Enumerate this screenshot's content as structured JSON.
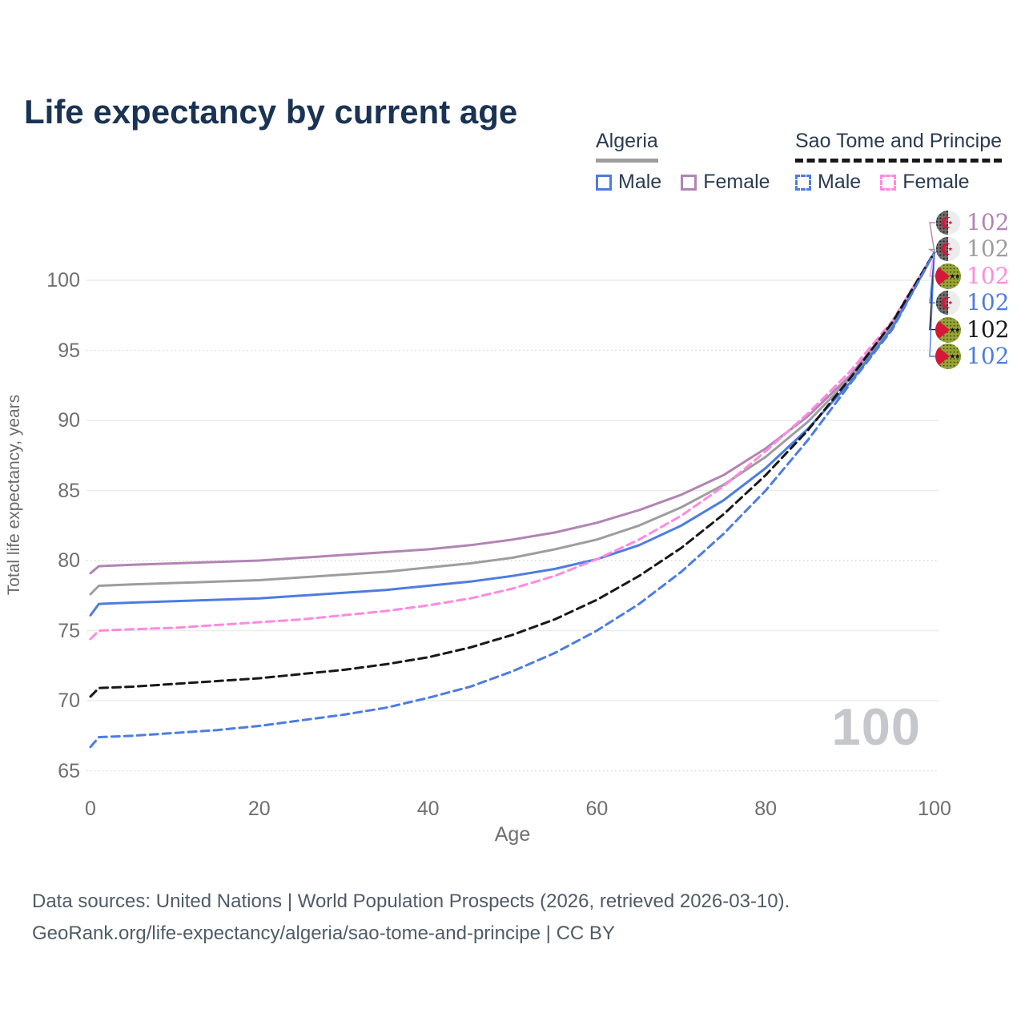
{
  "title": "Life expectancy by current age",
  "legend": {
    "groups": [
      {
        "label": "Algeria",
        "style": "solid",
        "items": [
          {
            "label": "Male",
            "color": "#4d7ce2",
            "line": "solid"
          },
          {
            "label": "Female",
            "color": "#b184b4",
            "line": "solid"
          }
        ]
      },
      {
        "label": "Sao Tome and Principe",
        "style": "dashed",
        "items": [
          {
            "label": "Male",
            "color": "#4d7ce2",
            "line": "dashed"
          },
          {
            "label": "Female",
            "color": "#ff8ae0",
            "line": "dashed"
          }
        ]
      }
    ]
  },
  "footer": {
    "line1": "Data sources: United Nations | World Population Prospects (2026, retrieved 2026-03-10).",
    "line2": "GeoRank.org/life-expectancy/algeria/sao-tome-and-principe | CC BY"
  },
  "colors": {
    "title": "#1a3354",
    "grid_solid": "#ececec",
    "grid_dotted": "#d9d9d9",
    "tick_text": "#6f6f6f",
    "algeria_male": "#4d7ce2",
    "algeria_female": "#b184b4",
    "algeria_all": "#9d9d9d",
    "stp_male": "#4d7ce2",
    "stp_female": "#ff8ae0",
    "stp_all": "#181818"
  },
  "chart_data": {
    "type": "line",
    "title": "Life expectancy by current age",
    "xlabel": "Age",
    "ylabel": "Total life expectancy, years",
    "xlim": [
      0,
      100
    ],
    "ylim": [
      65,
      103
    ],
    "x_ticks": [
      0,
      20,
      40,
      60,
      80,
      100
    ],
    "y_ticks": [
      65,
      70,
      75,
      80,
      85,
      90,
      95,
      100
    ],
    "y_ticks_dotted": [
      65,
      80,
      95
    ],
    "grid": true,
    "legend_position": "top-right",
    "watermark": "100",
    "x": [
      0,
      1,
      5,
      10,
      15,
      20,
      25,
      30,
      35,
      40,
      45,
      50,
      55,
      60,
      65,
      70,
      75,
      80,
      85,
      90,
      95,
      100
    ],
    "series": [
      {
        "name": "Algeria Female",
        "country": "Algeria",
        "sex": "Female",
        "line": "solid",
        "color": "#b184b4",
        "flag": "algeria",
        "end_label": "102",
        "values": [
          79.1,
          79.6,
          79.7,
          79.8,
          79.9,
          80.0,
          80.2,
          80.4,
          80.6,
          80.8,
          81.1,
          81.5,
          82.0,
          82.7,
          83.6,
          84.7,
          86.1,
          88.0,
          90.3,
          93.2,
          96.9,
          102
        ]
      },
      {
        "name": "Algeria Both sexes",
        "country": "Algeria",
        "sex": "All",
        "line": "solid",
        "color": "#9d9d9d",
        "flag": "algeria",
        "end_label": "102",
        "values": [
          77.6,
          78.2,
          78.3,
          78.4,
          78.5,
          78.6,
          78.8,
          79.0,
          79.2,
          79.5,
          79.8,
          80.2,
          80.8,
          81.5,
          82.5,
          83.8,
          85.4,
          87.4,
          89.9,
          93.0,
          96.8,
          102
        ]
      },
      {
        "name": "Sao Tome and Principe Female",
        "country": "Sao Tome and Principe",
        "sex": "Female",
        "line": "dashed",
        "color": "#ff8ae0",
        "flag": "stp",
        "end_label": "102",
        "values": [
          74.4,
          75.0,
          75.1,
          75.2,
          75.4,
          75.6,
          75.8,
          76.1,
          76.4,
          76.8,
          77.3,
          78.0,
          78.9,
          80.1,
          81.5,
          83.2,
          85.3,
          87.8,
          90.5,
          93.5,
          97.1,
          102
        ]
      },
      {
        "name": "Algeria Male",
        "country": "Algeria",
        "sex": "Male",
        "line": "solid",
        "color": "#4d7ce2",
        "flag": "algeria",
        "end_label": "102",
        "values": [
          76.1,
          76.9,
          77.0,
          77.1,
          77.2,
          77.3,
          77.5,
          77.7,
          77.9,
          78.2,
          78.5,
          78.9,
          79.4,
          80.1,
          81.1,
          82.5,
          84.3,
          86.6,
          89.4,
          92.7,
          96.6,
          102
        ]
      },
      {
        "name": "Sao Tome and Principe Both sexes",
        "country": "Sao Tome and Principe",
        "sex": "All",
        "line": "dashed",
        "color": "#181818",
        "flag": "stp",
        "end_label": "102",
        "values": [
          70.3,
          70.9,
          71.0,
          71.2,
          71.4,
          71.6,
          71.9,
          72.2,
          72.6,
          73.1,
          73.8,
          74.7,
          75.8,
          77.2,
          78.9,
          80.9,
          83.3,
          86.1,
          89.3,
          93.0,
          97.0,
          102
        ]
      },
      {
        "name": "Sao Tome and Principe Male",
        "country": "Sao Tome and Principe",
        "sex": "Male",
        "line": "dashed",
        "color": "#4d7ce2",
        "flag": "stp",
        "end_label": "102",
        "values": [
          66.7,
          67.4,
          67.5,
          67.7,
          67.9,
          68.2,
          68.6,
          69.0,
          69.5,
          70.2,
          71.0,
          72.1,
          73.4,
          75.0,
          76.9,
          79.2,
          81.9,
          85.0,
          88.6,
          92.6,
          96.5,
          102
        ]
      }
    ]
  }
}
